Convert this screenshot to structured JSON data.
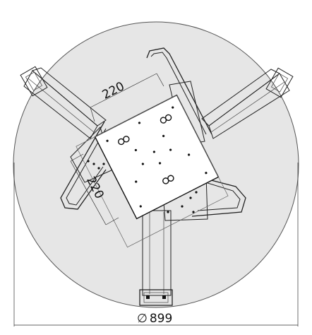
{
  "dimensions": {
    "plate_width": "220",
    "plate_height": "220",
    "diameter": "899",
    "diameter_symbol": "∅"
  }
}
